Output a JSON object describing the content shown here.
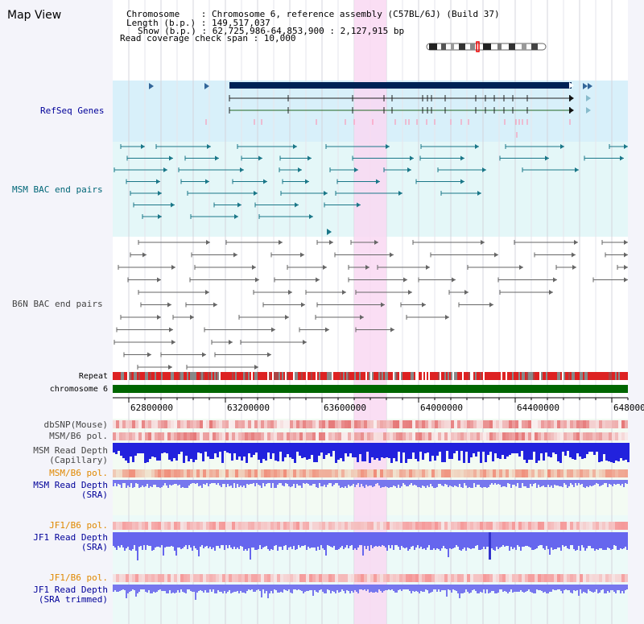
{
  "title": "Map View",
  "info": {
    "lines": [
      "Chromosome    : Chromosome 6, reference assembly (C57BL/6J) (Build 37)",
      "Length (b.p.) : 149,517,037",
      "Show (b.p.) : 62,725,986-64,853,900 : 2,127,915 bp",
      "Read coverage check span : 10,000"
    ]
  },
  "tracks": {
    "refseq": "RefSeq Genes",
    "msm_bac": "MSM BAC end pairs",
    "b6n_bac": "B6N BAC end pairs",
    "repeat": "Repeat",
    "chromosome": "chromosome 6",
    "dbsnp": "dbSNP(Mouse)",
    "msm_b6_pol": "MSM/B6 pol.",
    "msm_depth_cap_1": "MSM Read Depth",
    "msm_depth_cap_2": "(Capillary)",
    "msm_b6_pol_2": "MSM/B6 pol.",
    "msm_depth_sra_1": "MSM Read Depth",
    "msm_depth_sra_2": "(SRA)",
    "jf1_b6_pol": "JF1/B6 pol.",
    "jf1_depth_sra_1": "JF1 Read Depth",
    "jf1_depth_sra_2": "(SRA)",
    "jf1_b6_pol_2": "JF1/B6 pol.",
    "jf1_depth_trim_1": "JF1 Read Depth",
    "jf1_depth_trim_2": "(SRA trimmed)"
  },
  "axis": {
    "ticks": [
      "62800000",
      "63200000",
      "63600000",
      "64000000",
      "64400000",
      "648000"
    ]
  },
  "colors": {
    "refseq_bg": "#d8f0fa",
    "msm_bg": "#e2f8f8",
    "highlight": "#f9d8f2",
    "depth_blue": "#2222dd",
    "sra_blue": "#7777ee",
    "chrom_green": "#006600",
    "label_blue": "#000099",
    "label_orange": "#e08800",
    "label_teal": "#006677"
  }
}
